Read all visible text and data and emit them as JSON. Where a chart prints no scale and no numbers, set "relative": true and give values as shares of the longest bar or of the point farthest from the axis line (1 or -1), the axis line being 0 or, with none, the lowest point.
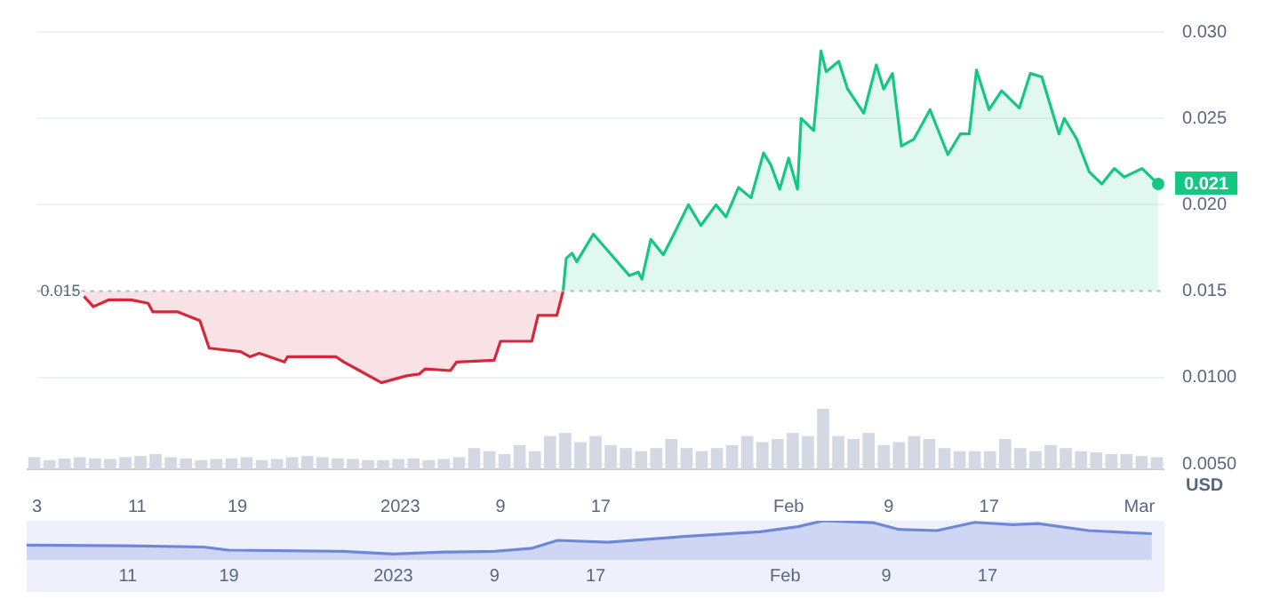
{
  "chart_data": [
    {
      "type": "area",
      "xlim": [
        "2022-12-03",
        "2023-03-03"
      ],
      "xticks": [
        {
          "value": "2022-12-03",
          "label": "3"
        },
        {
          "value": "2022-12-11",
          "label": "11"
        },
        {
          "value": "2022-12-19",
          "label": "19"
        },
        {
          "value": "2023-01-01",
          "label": "2023"
        },
        {
          "value": "2023-01-09",
          "label": "9"
        },
        {
          "value": "2023-01-17",
          "label": "17"
        },
        {
          "value": "2023-02-01",
          "label": "Feb"
        },
        {
          "value": "2023-02-09",
          "label": "9"
        },
        {
          "value": "2023-02-17",
          "label": "17"
        },
        {
          "value": "2023-03-01",
          "label": "Mar"
        }
      ],
      "ylim": [
        0.005,
        0.03
      ],
      "yticks": [
        {
          "value": 0.005,
          "label": "0.0050"
        },
        {
          "value": 0.01,
          "label": "0.0100"
        },
        0.015,
        {
          "value": 0.02,
          "label": "0.020"
        },
        0.025,
        {
          "value": 0.03,
          "label": "0.030"
        }
      ],
      "ylabel": "USD",
      "grid": "y",
      "legend": false,
      "marker": "none",
      "ref_lines": [
        {
          "axis": "y",
          "value": 0.015,
          "label": "0.015",
          "line_style": "dotted",
          "color": "#b0b6c2"
        }
      ],
      "annotations": [
        {
          "text": "0.021",
          "x": "2023-03-02T12:00",
          "y": 0.0212
        }
      ],
      "series": [
        {
          "type": "area",
          "color": "#d4293b",
          "x": [
            "2022-12-06T18:00",
            "2022-12-07T12:00",
            "2022-12-08T18:00",
            "2022-12-10T12:00",
            "2022-12-11T21:00",
            "2022-12-12T06:00",
            "2022-12-14T06:00",
            "2022-12-16T00:00",
            "2022-12-16T18:00",
            "2022-12-19T06:00",
            "2022-12-20T00:00",
            "2022-12-20T18:00",
            "2022-12-22T18:00",
            "2022-12-23T00:00",
            "2022-12-26T21:00",
            "2022-12-27T12:00",
            "2022-12-28T18:00",
            "2022-12-30T12:00",
            "2023-01-01T12:00",
            "2023-01-02T12:00",
            "2023-01-03T00:00",
            "2023-01-05T00:00",
            "2023-01-05T12:00",
            "2023-01-08T12:00",
            "2023-01-09T00:00",
            "2023-01-11T12:00",
            "2023-01-12T00:00",
            "2023-01-13T12:00",
            "2023-01-14T00:00"
          ],
          "values": [
            0.0147,
            0.0141,
            0.0145,
            0.0145,
            0.0143,
            0.0138,
            0.0138,
            0.0133,
            0.0117,
            0.0115,
            0.0112,
            0.0114,
            0.0109,
            0.0112,
            0.0112,
            0.0109,
            0.0104,
            0.0097,
            0.0101,
            0.0102,
            0.0105,
            0.0104,
            0.0109,
            0.011,
            0.0121,
            0.0121,
            0.0136,
            0.0136,
            0.015
          ]
        },
        {
          "type": "area",
          "color": "#16c784",
          "x": [
            "2023-01-14T00:00",
            "2023-01-14T06:00",
            "2023-01-14T17:00",
            "2023-01-15T02:00",
            "2023-01-16T10:00",
            "2023-01-17T12:00",
            "2023-01-19T07:00",
            "2023-01-20T00:00",
            "2023-01-20T07:00",
            "2023-01-21T00:00",
            "2023-01-22T00:00",
            "2023-01-22T17:00",
            "2023-01-24T00:00",
            "2023-01-25T00:00",
            "2023-01-26T05:00",
            "2023-01-27T00:00",
            "2023-01-28T00:00",
            "2023-01-29T00:00",
            "2023-01-30T00:00",
            "2023-01-30T14:00",
            "2023-01-31T07:00",
            "2023-02-01T00:00",
            "2023-02-01T17:00",
            "2023-02-02T00:00",
            "2023-02-03T00:00",
            "2023-02-03T14:00",
            "2023-02-04T00:00",
            "2023-02-05T00:00",
            "2023-02-05T17:00",
            "2023-02-07T00:00",
            "2023-02-08T00:00",
            "2023-02-08T14:00",
            "2023-02-09T07:00",
            "2023-02-10T00:00",
            "2023-02-11T00:00",
            "2023-02-12T07:00",
            "2023-02-13T17:00",
            "2023-02-14T17:00",
            "2023-02-15T10:00",
            "2023-02-16T00:00",
            "2023-02-17T00:00",
            "2023-02-18T00:00",
            "2023-02-19T10:00",
            "2023-02-20T07:00",
            "2023-02-21T05:00",
            "2023-02-22T14:00",
            "2023-02-23T00:00",
            "2023-02-24T00:00",
            "2023-02-25T00:00",
            "2023-02-26T00:00",
            "2023-02-27T00:00",
            "2023-02-27T19:00",
            "2023-03-01T05:00",
            "2023-03-02T12:00"
          ],
          "values": [
            0.015,
            0.0169,
            0.0172,
            0.0167,
            0.0183,
            0.0174,
            0.0159,
            0.0161,
            0.0157,
            0.018,
            0.0171,
            0.0181,
            0.02,
            0.0188,
            0.02,
            0.0193,
            0.021,
            0.0204,
            0.023,
            0.0223,
            0.0209,
            0.0227,
            0.0209,
            0.025,
            0.0243,
            0.0289,
            0.0277,
            0.0283,
            0.0267,
            0.0253,
            0.0281,
            0.0267,
            0.0276,
            0.0234,
            0.0238,
            0.0255,
            0.0229,
            0.0241,
            0.0241,
            0.0278,
            0.0255,
            0.0266,
            0.0256,
            0.0276,
            0.0274,
            0.0241,
            0.025,
            0.0238,
            0.0219,
            0.0212,
            0.0221,
            0.0216,
            0.0221,
            0.0212
          ]
        }
      ]
    },
    {
      "type": "bar",
      "relative": true,
      "tick_labels": false,
      "legend": false,
      "color": "#d3d8e3",
      "categories": [
        null,
        null,
        null,
        null,
        null,
        null,
        null,
        null,
        null,
        null,
        null,
        null,
        null,
        null,
        null,
        null,
        null,
        null,
        null,
        null,
        null,
        null,
        null,
        null,
        null,
        null,
        null,
        null,
        null,
        null,
        null,
        null,
        null,
        null,
        null,
        null,
        null,
        null,
        null,
        null,
        null,
        null,
        null,
        null,
        null,
        null,
        null,
        null,
        null,
        null,
        null,
        null,
        null,
        null,
        null,
        null,
        null,
        null,
        null,
        null,
        null,
        null,
        null,
        null,
        null,
        null,
        null,
        null,
        null,
        null,
        null,
        null,
        null,
        null,
        null
      ],
      "values": [
        0.2,
        0.15,
        0.18,
        0.2,
        0.18,
        0.17,
        0.2,
        0.22,
        0.25,
        0.2,
        0.18,
        0.15,
        0.17,
        0.18,
        0.2,
        0.15,
        0.17,
        0.2,
        0.22,
        0.2,
        0.18,
        0.17,
        0.15,
        0.15,
        0.17,
        0.18,
        0.15,
        0.17,
        0.2,
        0.35,
        0.3,
        0.25,
        0.4,
        0.3,
        0.55,
        0.6,
        0.45,
        0.55,
        0.4,
        0.35,
        0.3,
        0.35,
        0.5,
        0.35,
        0.3,
        0.35,
        0.4,
        0.55,
        0.45,
        0.5,
        0.6,
        0.55,
        1.0,
        0.55,
        0.5,
        0.6,
        0.4,
        0.45,
        0.55,
        0.5,
        0.35,
        0.3,
        0.3,
        0.3,
        0.5,
        0.35,
        0.3,
        0.4,
        0.35,
        0.3,
        0.28,
        0.25,
        0.25,
        0.22,
        0.2
      ]
    },
    {
      "type": "area",
      "relative": true,
      "tick_labels": "x",
      "legend": false,
      "marker": "none",
      "color": "#6f88d6",
      "xlim": [
        "2022-12-03",
        "2023-03-03"
      ],
      "xticks": [
        {
          "value": "2022-12-11",
          "label": "11"
        },
        {
          "value": "2022-12-19",
          "label": "19"
        },
        {
          "value": "2023-01-01",
          "label": "2023"
        },
        {
          "value": "2023-01-09",
          "label": "9"
        },
        {
          "value": "2023-01-17",
          "label": "17"
        },
        {
          "value": "2023-02-01",
          "label": "Feb"
        },
        {
          "value": "2023-02-09",
          "label": "9"
        },
        {
          "value": "2023-02-17",
          "label": "17"
        }
      ],
      "x": [
        "2022-12-03",
        "2022-12-11",
        "2022-12-17",
        "2022-12-19",
        "2022-12-28",
        "2023-01-01",
        "2023-01-05",
        "2023-01-09",
        "2023-01-12",
        "2023-01-14",
        "2023-01-18",
        "2023-01-24",
        "2023-01-30",
        "2023-02-02",
        "2023-02-04",
        "2023-02-08",
        "2023-02-10",
        "2023-02-13",
        "2023-02-16",
        "2023-02-19",
        "2023-02-21",
        "2023-02-25",
        "2023-03-02"
      ],
      "values": [
        0.38,
        0.36,
        0.33,
        0.25,
        0.22,
        0.15,
        0.2,
        0.22,
        0.3,
        0.5,
        0.45,
        0.6,
        0.72,
        0.85,
        1.0,
        0.95,
        0.78,
        0.75,
        0.96,
        0.9,
        0.93,
        0.75,
        0.67
      ]
    }
  ]
}
